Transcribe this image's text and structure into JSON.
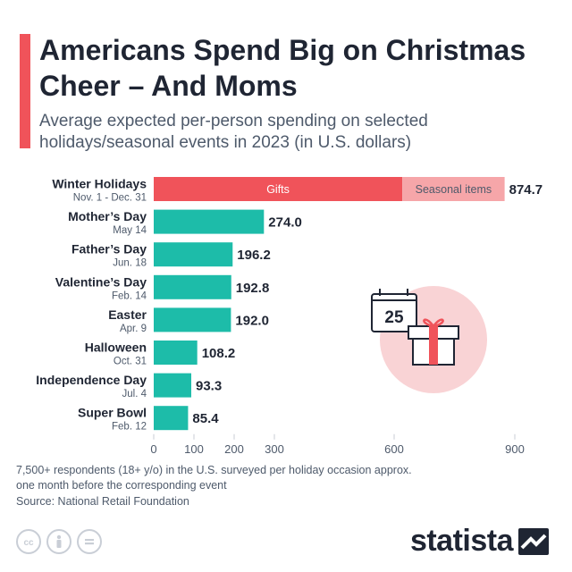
{
  "header": {
    "title": "Americans Spend Big on Christmas Cheer – And Moms",
    "subtitle": "Average expected per-person spending on selected holidays/seasonal events in 2023 (in U.S. dollars)"
  },
  "chart_data": {
    "type": "bar",
    "orientation": "horizontal",
    "categories": [
      "Winter Holidays",
      "Mother’s Day",
      "Father’s Day",
      "Valentine’s Day",
      "Easter",
      "Halloween",
      "Independence Day",
      "Super Bowl"
    ],
    "category_dates": [
      "Nov. 1 - Dec. 31",
      "May 14",
      "Jun. 18",
      "Feb. 14",
      "Apr. 9",
      "Oct. 31",
      "Jul. 4",
      "Feb. 12"
    ],
    "values": [
      874.7,
      274.0,
      196.2,
      192.8,
      192.0,
      108.2,
      93.3,
      85.4
    ],
    "value_labels": [
      "874.7",
      "274.0",
      "196.2",
      "192.8",
      "192.0",
      "108.2",
      "93.3",
      "85.4"
    ],
    "stacked_first_bar": {
      "segments": [
        {
          "name": "Gifts",
          "value": 620.3
        },
        {
          "name": "Seasonal items",
          "value": 254.4
        }
      ]
    },
    "xlim": [
      0,
      900
    ],
    "x_ticks": [
      0,
      100,
      200,
      300,
      600,
      900
    ],
    "x_tick_labels": [
      "0",
      "100",
      "200",
      "300",
      "600",
      "900"
    ],
    "axis_break": {
      "from": 300,
      "to": 600
    },
    "grid": false,
    "illustration_text": "25",
    "colors": {
      "bar": "#1dbca9",
      "gifts": "#f0535a",
      "seasonal": "#f6a6a9",
      "text": "#1f2533",
      "muted": "#4e5a6b",
      "circle": "#f9d3d5"
    }
  },
  "footer": {
    "note": "7,500+ respondents (18+ y/o) in the U.S. surveyed per holiday occasion approx. one month before the corresponding event",
    "source": "Source: National Retail Foundation",
    "brand": "statista",
    "license_icons": [
      "cc-icon",
      "attribution-icon",
      "no-derivatives-icon"
    ]
  }
}
